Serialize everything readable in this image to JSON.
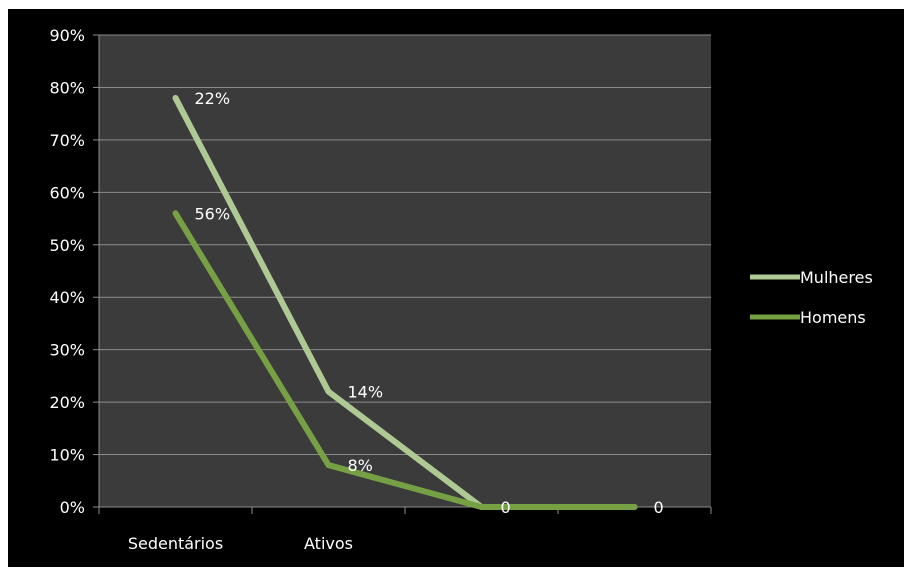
{
  "chart_data": {
    "type": "line",
    "categories": [
      "Sedentários",
      "Ativos",
      "",
      ""
    ],
    "y_ticks": [
      "0%",
      "10%",
      "20%",
      "30%",
      "40%",
      "50%",
      "60%",
      "70%",
      "80%",
      "90%"
    ],
    "ylim": [
      0,
      90
    ],
    "grid": true,
    "legend_position": "right",
    "series": [
      {
        "name": "Mulheres",
        "values": [
          78,
          22,
          0,
          0
        ],
        "labels": [
          "22%",
          "14%",
          "",
          "0"
        ],
        "color": "#aec993"
      },
      {
        "name": "Homens",
        "values": [
          56,
          8,
          0,
          0
        ],
        "labels": [
          "56%",
          "8%",
          "0",
          ""
        ],
        "color": "#76a044"
      }
    ],
    "background": "#3b3b3b",
    "frame": "#000000"
  }
}
